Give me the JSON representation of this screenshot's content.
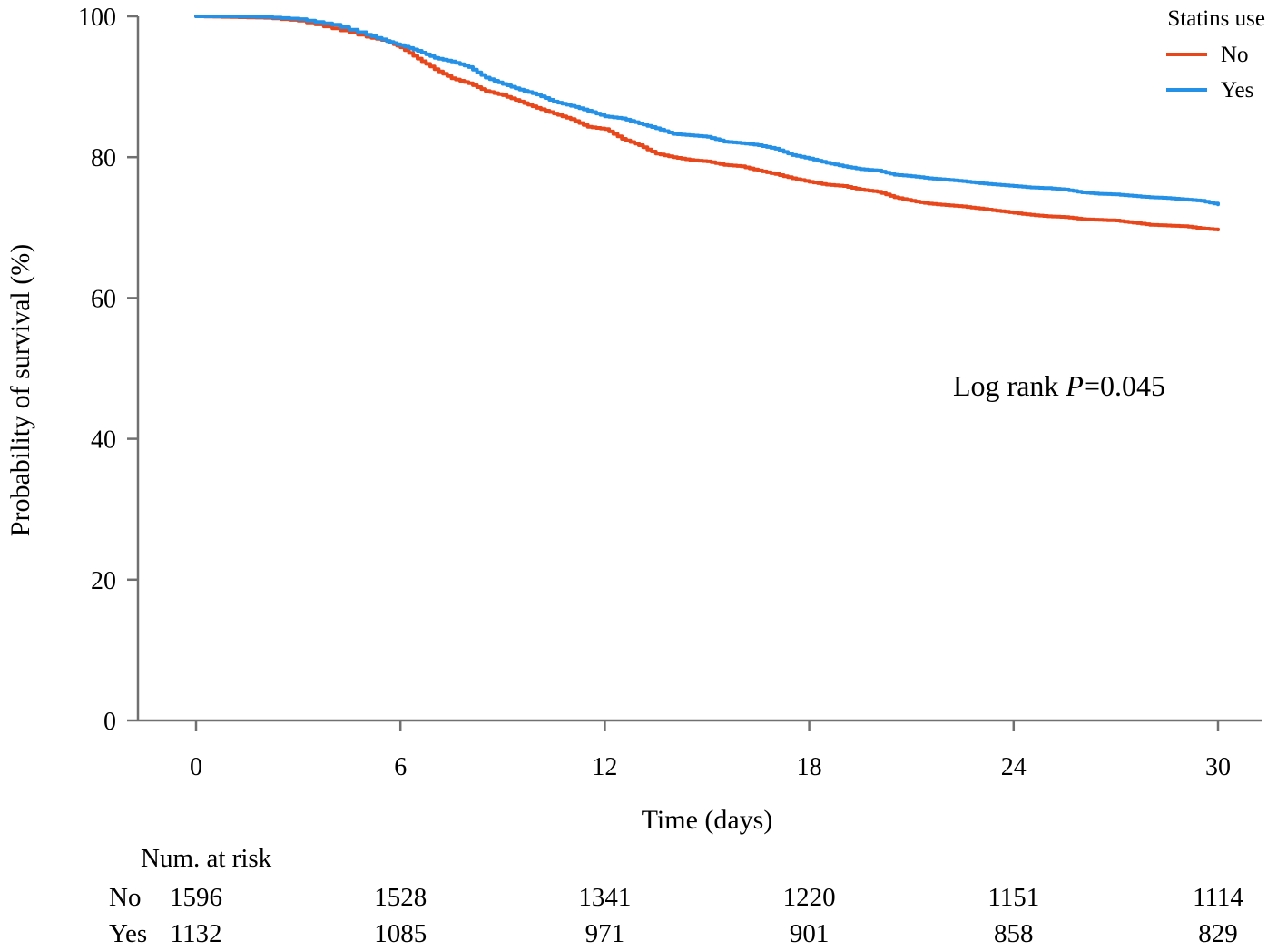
{
  "chart_data": {
    "type": "line",
    "step": true,
    "xlabel": "Time (days)",
    "ylabel": "Probability of survival (%)",
    "xlim": [
      0,
      30
    ],
    "ylim": [
      0,
      100
    ],
    "xticks": [
      0,
      6,
      12,
      18,
      24,
      30
    ],
    "yticks": [
      0,
      20,
      40,
      60,
      80,
      100
    ],
    "grid": false,
    "legend": {
      "title": "Statins use",
      "position": "top-right"
    },
    "annotation": {
      "prefix": "Log rank ",
      "italic": "P",
      "suffix": "=0.045"
    },
    "series": [
      {
        "name": "No",
        "color": "#e8471c",
        "x": [
          0,
          1,
          2,
          3,
          4,
          5,
          5.6,
          6,
          6.5,
          7,
          7.5,
          8,
          8.5,
          9,
          9.5,
          10,
          10.5,
          11,
          11.5,
          12,
          12.5,
          13,
          13.5,
          14,
          14.5,
          15,
          15.5,
          16,
          16.5,
          17,
          17.5,
          18,
          18.5,
          19,
          19.5,
          20,
          20.5,
          21,
          21.5,
          22,
          22.5,
          23,
          23.5,
          24,
          24.5,
          25,
          25.5,
          26,
          26.5,
          27,
          27.5,
          28,
          28.5,
          29,
          29.5,
          30
        ],
        "y": [
          100,
          99.9,
          99.8,
          99.4,
          98.3,
          97.1,
          96.5,
          95.6,
          94,
          92.5,
          91.2,
          90.5,
          89.4,
          88.8,
          87.9,
          87,
          86.2,
          85.4,
          84.3,
          84,
          82.6,
          81.7,
          80.5,
          80,
          79.6,
          79.4,
          78.9,
          78.7,
          78.1,
          77.6,
          77,
          76.5,
          76.1,
          75.9,
          75.4,
          75.1,
          74.3,
          73.8,
          73.4,
          73.2,
          73,
          72.7,
          72.4,
          72.1,
          71.8,
          71.6,
          71.5,
          71.2,
          71.1,
          71,
          70.7,
          70.4,
          70.3,
          70.2,
          69.9,
          69.7
        ]
      },
      {
        "name": "Yes",
        "color": "#2591e6",
        "x": [
          0,
          1,
          2,
          3,
          4,
          5,
          5.6,
          6,
          6.5,
          7,
          7.5,
          8,
          8.5,
          9,
          9.5,
          10,
          10.5,
          11,
          11.5,
          12,
          12.5,
          13,
          13.5,
          14,
          14.5,
          15,
          15.5,
          16,
          16.5,
          17,
          17.5,
          18,
          18.5,
          19,
          19.5,
          20,
          20.5,
          21,
          21.5,
          22,
          22.5,
          23,
          23.5,
          24,
          24.5,
          25,
          25.5,
          26,
          26.5,
          27,
          27.5,
          28,
          28.5,
          29,
          29.5,
          30
        ],
        "y": [
          100,
          100,
          99.9,
          99.6,
          98.8,
          97.4,
          96.5,
          95.9,
          95.1,
          94.1,
          93.6,
          92.8,
          91.3,
          90.4,
          89.6,
          88.9,
          87.9,
          87.3,
          86.6,
          85.8,
          85.5,
          84.8,
          84.1,
          83.3,
          83.1,
          82.9,
          82.2,
          82,
          81.7,
          81.2,
          80.3,
          79.8,
          79.2,
          78.7,
          78.3,
          78.1,
          77.5,
          77.3,
          77,
          76.8,
          76.6,
          76.3,
          76.1,
          75.9,
          75.7,
          75.6,
          75.4,
          75,
          74.8,
          74.7,
          74.5,
          74.3,
          74.2,
          74,
          73.8,
          73.3
        ]
      }
    ],
    "risk_table": {
      "title": "Num. at risk",
      "rows": [
        {
          "label": "No",
          "values": [
            "1596",
            "1528",
            "1341",
            "1220",
            "1151",
            "1114"
          ]
        },
        {
          "label": "Yes",
          "values": [
            "1132",
            "1085",
            "971",
            "901",
            "858",
            "829"
          ]
        }
      ]
    }
  }
}
